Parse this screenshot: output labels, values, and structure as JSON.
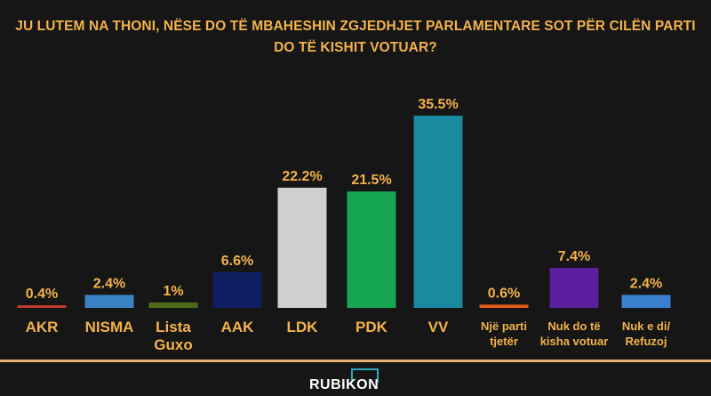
{
  "chart_data": {
    "type": "bar",
    "title_line1": "JU LUTEM NA THONI, NËSE DO TË MBAHESHIN ZGJEDHJET PARLAMENTARE SOT PËR CILËN PARTI",
    "title_line2": "DO TË KISHIT VOTUAR?",
    "categories": [
      [
        "AKR"
      ],
      [
        "NISMA"
      ],
      [
        "Lista",
        "Guxo"
      ],
      [
        "AAK"
      ],
      [
        "LDK"
      ],
      [
        "PDK"
      ],
      [
        "VV"
      ],
      [
        "Një parti",
        "tjetër"
      ],
      [
        "Nuk do të",
        "kisha votuar"
      ],
      [
        "Nuk e di/",
        "Refuzoj"
      ]
    ],
    "values": [
      0.4,
      2.4,
      1,
      6.6,
      22.2,
      21.5,
      35.5,
      0.6,
      7.4,
      2.4
    ],
    "value_labels": [
      "0.4%",
      "2.4%",
      "1%",
      "6.6%",
      "22.2%",
      "21.5%",
      "35.5%",
      "0.6%",
      "7.4%",
      "2.4%"
    ],
    "colors": [
      "#c0392b",
      "#3b82c4",
      "#4d6a1a",
      "#0f1e60",
      "#cfcfcf",
      "#16a651",
      "#1a8aa0",
      "#e35a1a",
      "#5b1fa0",
      "#3b7fcf"
    ],
    "label_color": "#f3b24a",
    "ylim": [
      0,
      35.5
    ]
  },
  "footer": {
    "logo_text": "RUBIKON",
    "line_color": "#e2b06e"
  }
}
